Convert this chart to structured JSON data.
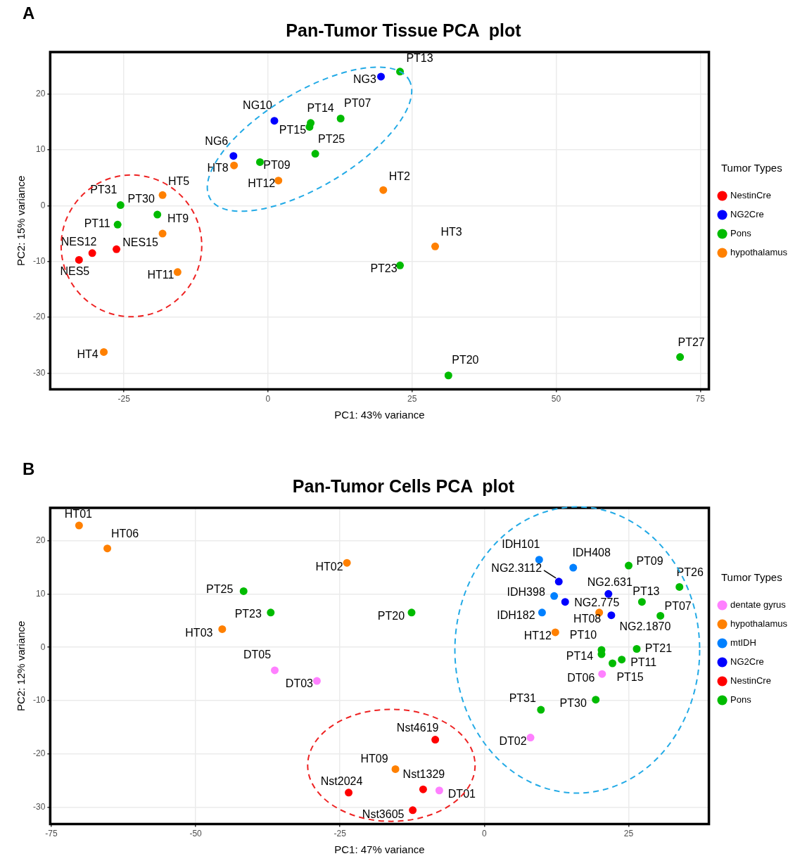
{
  "chart_data": [
    {
      "type": "scatter",
      "title": "Pan-Tumor Tissue PCA  plot",
      "xlabel": "PC1: 43% variance",
      "ylabel": "PC2: 15% variance",
      "legend_title": "Tumor Types",
      "legend": "right",
      "grid": true,
      "marker": "circle",
      "xlim": [
        -37.8,
        76.5
      ],
      "ylim": [
        -32.9,
        27.5
      ],
      "xticks": [
        -25,
        0,
        25,
        50,
        75
      ],
      "yticks": [
        -30,
        -20,
        -10,
        0,
        10,
        20
      ],
      "series": [
        {
          "name": "NestinCre",
          "color": "#ff0000",
          "x": [
            -32.8,
            -30.5,
            -26.3
          ],
          "values": [
            -9.7,
            -8.5,
            -7.8
          ]
        },
        {
          "name": "NG2Cre",
          "color": "#0000ff",
          "x": [
            19.6,
            1.1,
            -6.0
          ],
          "values": [
            23.1,
            15.2,
            8.9
          ]
        },
        {
          "name": "Pons",
          "color": "#00bb00",
          "x": [
            22.9,
            7.4,
            7.2,
            12.6,
            8.2,
            -1.4,
            -25.6,
            -19.2,
            -26.1,
            22.9,
            31.3,
            71.5
          ],
          "values": [
            24.0,
            14.8,
            14.1,
            15.6,
            9.3,
            7.8,
            0.1,
            -1.6,
            -3.4,
            -10.7,
            -30.4,
            -27.1
          ]
        },
        {
          "name": "hypothalamus",
          "color": "#ff8000",
          "x": [
            -18.3,
            -18.3,
            -15.7,
            -5.9,
            1.8,
            20.0,
            29.0,
            -28.5
          ],
          "values": [
            1.9,
            -5.0,
            -11.9,
            7.2,
            4.5,
            2.8,
            -7.3,
            -26.2
          ]
        }
      ],
      "annotations": [
        "A",
        {
          "text": "NES5",
          "x": -32.8,
          "y": -9.7
        },
        {
          "text": "NES12",
          "x": -30.5,
          "y": -8.5
        },
        {
          "text": "NES15",
          "x": -26.3,
          "y": -7.8
        },
        {
          "text": "NG3",
          "x": 19.6,
          "y": 23.1
        },
        {
          "text": "NG10",
          "x": 1.1,
          "y": 15.2
        },
        {
          "text": "NG6",
          "x": -6.0,
          "y": 8.9
        },
        {
          "text": "PT13",
          "x": 22.9,
          "y": 24.0
        },
        {
          "text": "PT14",
          "x": 7.4,
          "y": 14.8
        },
        {
          "text": "PT15",
          "x": 7.2,
          "y": 14.1
        },
        {
          "text": "PT07",
          "x": 12.6,
          "y": 15.6
        },
        {
          "text": "PT25",
          "x": 8.2,
          "y": 9.3
        },
        {
          "text": "PT09",
          "x": -1.4,
          "y": 7.8
        },
        {
          "text": "PT31",
          "x": -25.6,
          "y": 0.1
        },
        {
          "text": "PT30",
          "x": -19.2,
          "y": -1.6
        },
        {
          "text": "PT11",
          "x": -26.1,
          "y": -3.4
        },
        {
          "text": "PT23",
          "x": 22.9,
          "y": -10.7
        },
        {
          "text": "PT20",
          "x": 31.3,
          "y": -30.4
        },
        {
          "text": "PT27",
          "x": 71.5,
          "y": -27.1
        },
        {
          "text": "HT5",
          "x": -18.3,
          "y": 1.9
        },
        {
          "text": "HT9",
          "x": -18.3,
          "y": -5.0
        },
        {
          "text": "HT11",
          "x": -15.7,
          "y": -11.9
        },
        {
          "text": "HT8",
          "x": -5.9,
          "y": 7.2
        },
        {
          "text": "HT12",
          "x": 1.8,
          "y": 4.5
        },
        {
          "text": "HT2",
          "x": 20.0,
          "y": 2.8
        },
        {
          "text": "HT3",
          "x": 29.0,
          "y": -7.3
        },
        {
          "text": "HT4",
          "x": -28.5,
          "y": -26.2
        }
      ]
    },
    {
      "type": "scatter",
      "title": "Pan-Tumor Cells PCA  plot",
      "xlabel": "PC1: 47% variance",
      "ylabel": "PC2: 12% variance",
      "legend_title": "Tumor Types",
      "legend": "right",
      "grid": true,
      "marker": "circle",
      "xlim": [
        -75.2,
        38.9
      ],
      "ylim": [
        -33.1,
        26.1
      ],
      "xticks": [
        -75,
        -50,
        -25,
        0,
        25
      ],
      "yticks": [
        -30,
        -20,
        -10,
        0,
        10,
        20
      ],
      "series": [
        {
          "name": "dentate gyrus",
          "color": "#ff80ff",
          "x": [
            -36.3,
            -29.0,
            20.4,
            8.0,
            -7.8
          ],
          "values": [
            -4.3,
            -6.3,
            -5.0,
            -16.9,
            -26.8
          ]
        },
        {
          "name": "hypothalamus",
          "color": "#ff8000",
          "x": [
            -70.2,
            -65.3,
            -23.8,
            -45.4,
            19.9,
            12.3,
            -15.4
          ],
          "values": [
            22.8,
            18.5,
            15.8,
            3.4,
            6.5,
            2.8,
            -22.8
          ]
        },
        {
          "name": "mtIDH",
          "color": "#0080ff",
          "x": [
            9.5,
            15.4,
            12.1,
            10.0
          ],
          "values": [
            16.4,
            14.9,
            9.6,
            6.5
          ]
        },
        {
          "name": "NG2Cre",
          "color": "#0000ff",
          "x": [
            12.9,
            21.5,
            14.0,
            22.0
          ],
          "values": [
            12.3,
            10.0,
            8.5,
            6.0
          ]
        },
        {
          "name": "NestinCre",
          "color": "#ff0000",
          "x": [
            -8.5,
            -10.6,
            -23.5,
            -12.4
          ],
          "values": [
            -17.3,
            -26.6,
            -27.2,
            -30.5
          ]
        },
        {
          "name": "Pons",
          "color": "#00bb00",
          "x": [
            -41.7,
            -37.0,
            -12.6,
            25.0,
            33.8,
            27.3,
            30.5,
            26.4,
            20.3,
            20.3,
            23.8,
            22.2,
            9.8,
            19.3
          ],
          "values": [
            10.5,
            6.5,
            6.5,
            15.3,
            11.3,
            8.5,
            5.9,
            -0.3,
            -0.5,
            -1.3,
            -2.3,
            -3.0,
            -11.7,
            -9.8
          ]
        }
      ],
      "annotations": [
        "B",
        {
          "text": "DT05",
          "x": -36.3,
          "y": -4.3
        },
        {
          "text": "DT03",
          "x": -29.0,
          "y": -6.3
        },
        {
          "text": "DT06",
          "x": 20.4,
          "y": -5.0
        },
        {
          "text": "DT02",
          "x": 8.0,
          "y": -16.9
        },
        {
          "text": "DT01",
          "x": -7.8,
          "y": -26.8
        },
        {
          "text": "HT01",
          "x": -70.2,
          "y": 22.8
        },
        {
          "text": "HT06",
          "x": -65.3,
          "y": 18.5
        },
        {
          "text": "HT02",
          "x": -23.8,
          "y": 15.8
        },
        {
          "text": "HT03",
          "x": -45.4,
          "y": 3.4
        },
        {
          "text": "HT08",
          "x": 19.9,
          "y": 6.5
        },
        {
          "text": "HT12",
          "x": 12.3,
          "y": 2.8
        },
        {
          "text": "HT09",
          "x": -15.4,
          "y": -22.8
        },
        {
          "text": "IDH101",
          "x": 9.5,
          "y": 16.4
        },
        {
          "text": "IDH408",
          "x": 15.4,
          "y": 14.9
        },
        {
          "text": "IDH398",
          "x": 12.1,
          "y": 9.6
        },
        {
          "text": "IDH182",
          "x": 10.0,
          "y": 6.5
        },
        {
          "text": "NG2.3112",
          "x": 12.9,
          "y": 12.3
        },
        {
          "text": "NG2.631",
          "x": 21.5,
          "y": 10.0
        },
        {
          "text": "NG2.775",
          "x": 14.0,
          "y": 8.5
        },
        {
          "text": "NG2.1870",
          "x": 22.0,
          "y": 6.0
        },
        {
          "text": "Nst4619",
          "x": -8.5,
          "y": -17.3
        },
        {
          "text": "Nst1329",
          "x": -10.6,
          "y": -26.6
        },
        {
          "text": "Nst2024",
          "x": -23.5,
          "y": -27.2
        },
        {
          "text": "Nst3605",
          "x": -12.4,
          "y": -30.5
        },
        {
          "text": "PT25",
          "x": -41.7,
          "y": 10.5
        },
        {
          "text": "PT23",
          "x": -37.0,
          "y": 6.5
        },
        {
          "text": "PT20",
          "x": -12.6,
          "y": 6.5
        },
        {
          "text": "PT09",
          "x": 25.0,
          "y": 15.3
        },
        {
          "text": "PT26",
          "x": 33.8,
          "y": 11.3
        },
        {
          "text": "PT13",
          "x": 27.3,
          "y": 8.5
        },
        {
          "text": "PT07",
          "x": 30.5,
          "y": 5.9
        },
        {
          "text": "PT21",
          "x": 26.4,
          "y": -0.3
        },
        {
          "text": "PT10",
          "x": 20.3,
          "y": -0.5
        },
        {
          "text": "PT14",
          "x": 20.3,
          "y": -1.3
        },
        {
          "text": "PT11",
          "x": 23.8,
          "y": -2.3
        },
        {
          "text": "PT15",
          "x": 22.2,
          "y": -3.0
        },
        {
          "text": "PT31",
          "x": 9.8,
          "y": -11.7
        },
        {
          "text": "PT30",
          "x": 19.3,
          "y": -9.8
        }
      ]
    }
  ]
}
